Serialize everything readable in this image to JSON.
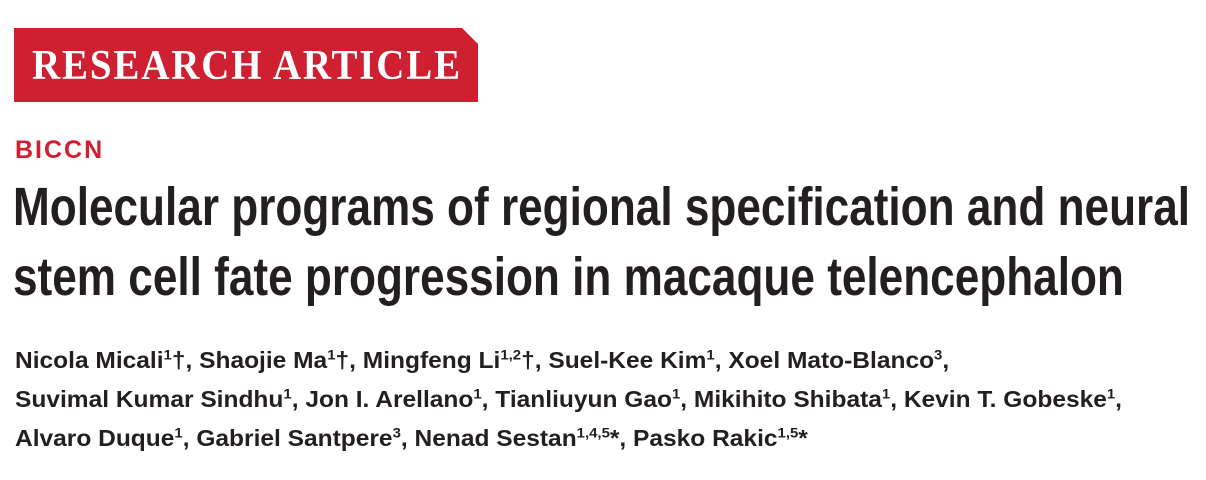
{
  "banner": "RESEARCH ARTICLE",
  "section": "BICCN",
  "title_lines": [
    "Molecular programs of regional specification and neural",
    "stem cell fate progression in macaque telencephalon"
  ],
  "author_lines": [
    [
      {
        "name": "Nicola Micali",
        "affiliations": "1",
        "mark": "†",
        "separator": ","
      },
      {
        "name": "Shaojie Ma",
        "affiliations": "1",
        "mark": "†",
        "separator": ","
      },
      {
        "name": "Mingfeng Li",
        "affiliations": "1,2",
        "mark": "†",
        "separator": ","
      },
      {
        "name": "Suel-Kee Kim",
        "affiliations": "1",
        "separator": ","
      },
      {
        "name": "Xoel Mato-Blanco",
        "affiliations": "3",
        "separator": ","
      }
    ],
    [
      {
        "name": "Suvimal Kumar Sindhu",
        "affiliations": "1",
        "separator": ","
      },
      {
        "name": "Jon I. Arellano",
        "affiliations": "1",
        "separator": ","
      },
      {
        "name": "Tianliuyun Gao",
        "affiliations": "1",
        "separator": ","
      },
      {
        "name": "Mikihito Shibata",
        "affiliations": "1",
        "separator": ","
      },
      {
        "name": "Kevin T. Gobeske",
        "affiliations": "1",
        "separator": ","
      }
    ],
    [
      {
        "name": "Alvaro Duque",
        "affiliations": "1",
        "separator": ","
      },
      {
        "name": "Gabriel Santpere",
        "affiliations": "3",
        "separator": ","
      },
      {
        "name": "Nenad Sestan",
        "affiliations": "1,4,5",
        "mark": "*",
        "separator": ","
      },
      {
        "name": "Pasko Rakic",
        "affiliations": "1,5",
        "mark": "*"
      }
    ]
  ]
}
